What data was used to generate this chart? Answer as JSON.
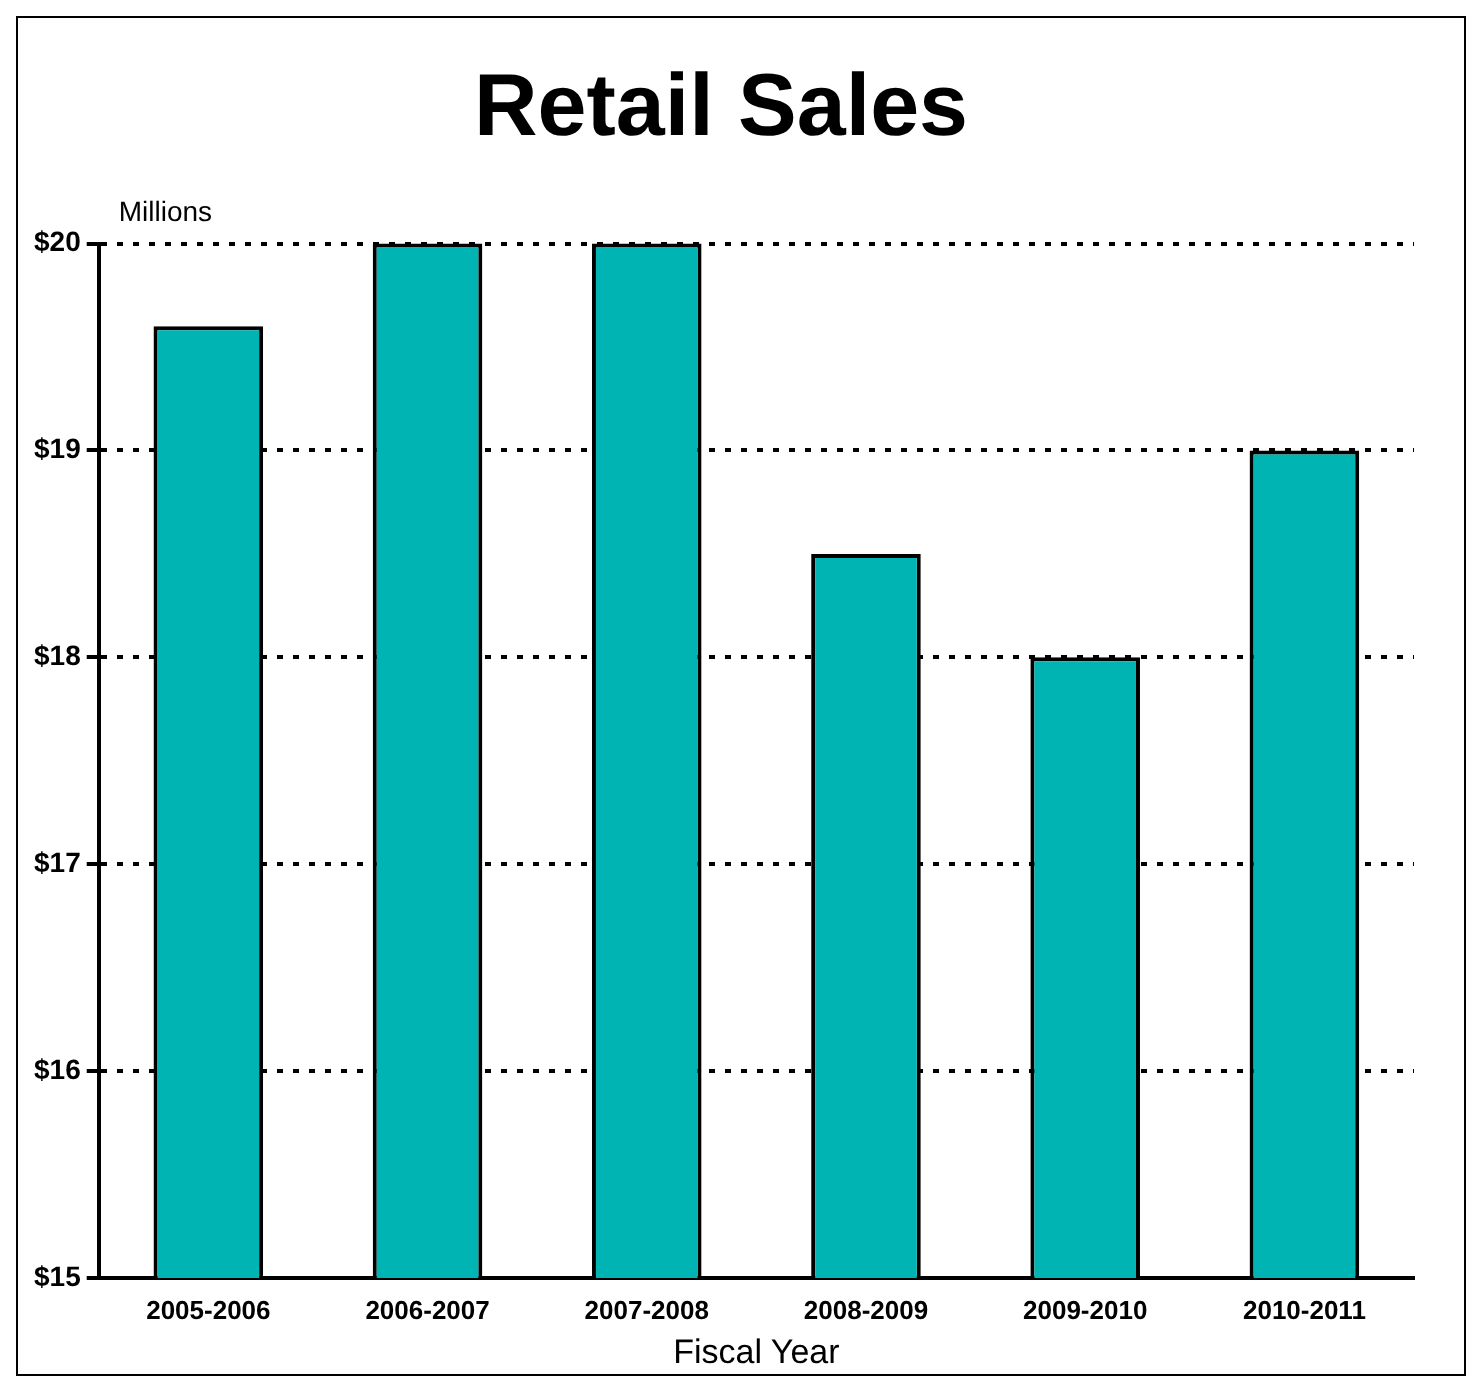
{
  "chart_data": {
    "type": "bar",
    "title": "Retail Sales",
    "ylabel": "Millions",
    "xlabel": "Fiscal Year",
    "categories": [
      "2005-2006",
      "2006-2007",
      "2007-2008",
      "2008-2009",
      "2009-2010",
      "2010-2011"
    ],
    "values": [
      19.6,
      20.0,
      20.0,
      18.5,
      18.0,
      19.0
    ],
    "color": "#00b4b4",
    "ylim": [
      15,
      20
    ],
    "yticks": [
      {
        "value": 15,
        "label": "$15"
      },
      {
        "value": 16,
        "label": "$16"
      },
      {
        "value": 17,
        "label": "$17"
      },
      {
        "value": 18,
        "label": "$18"
      },
      {
        "value": 19,
        "label": "$19"
      },
      {
        "value": 20,
        "label": "$20"
      }
    ],
    "grid": "y"
  }
}
